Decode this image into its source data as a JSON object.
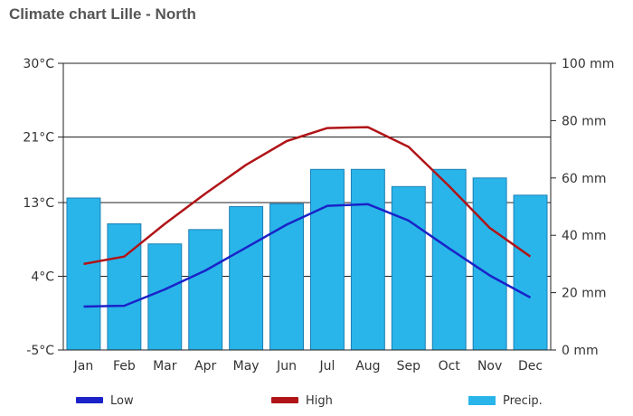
{
  "chart_data": {
    "type": "bar+line",
    "title": "Climate chart Lille - North",
    "categories": [
      "Jan",
      "Feb",
      "Mar",
      "Apr",
      "May",
      "Jun",
      "Jul",
      "Aug",
      "Sep",
      "Oct",
      "Nov",
      "Dec"
    ],
    "left_axis": {
      "unit": "°C",
      "range": [
        -5,
        30
      ],
      "ticks": [
        "-5°C",
        "4°C",
        "13°C",
        "21°C",
        "30°C"
      ]
    },
    "right_axis": {
      "unit": "mm",
      "range": [
        0,
        100
      ],
      "ticks": [
        "0 mm",
        "20 mm",
        "40 mm",
        "60 mm",
        "80 mm",
        "100 mm"
      ]
    },
    "grid": true,
    "legend": {
      "position": "bottom"
    },
    "series": [
      {
        "name": "Low",
        "kind": "line",
        "axis": "left",
        "color": "#1a22c8",
        "values": [
          0.3,
          0.4,
          2.4,
          4.7,
          7.5,
          10.3,
          12.6,
          12.8,
          10.8,
          7.4,
          4.1,
          1.4
        ]
      },
      {
        "name": "High",
        "kind": "line",
        "axis": "left",
        "color": "#b01418",
        "values": [
          5.5,
          6.4,
          10.4,
          14.1,
          17.6,
          20.5,
          22.1,
          22.2,
          19.8,
          15.0,
          9.9,
          6.4
        ]
      },
      {
        "name": "Precip.",
        "kind": "bar",
        "axis": "right",
        "color": "#29b5ea",
        "values": [
          53,
          44,
          37,
          42,
          50,
          51,
          63,
          63,
          57,
          63,
          60,
          54
        ]
      }
    ]
  }
}
